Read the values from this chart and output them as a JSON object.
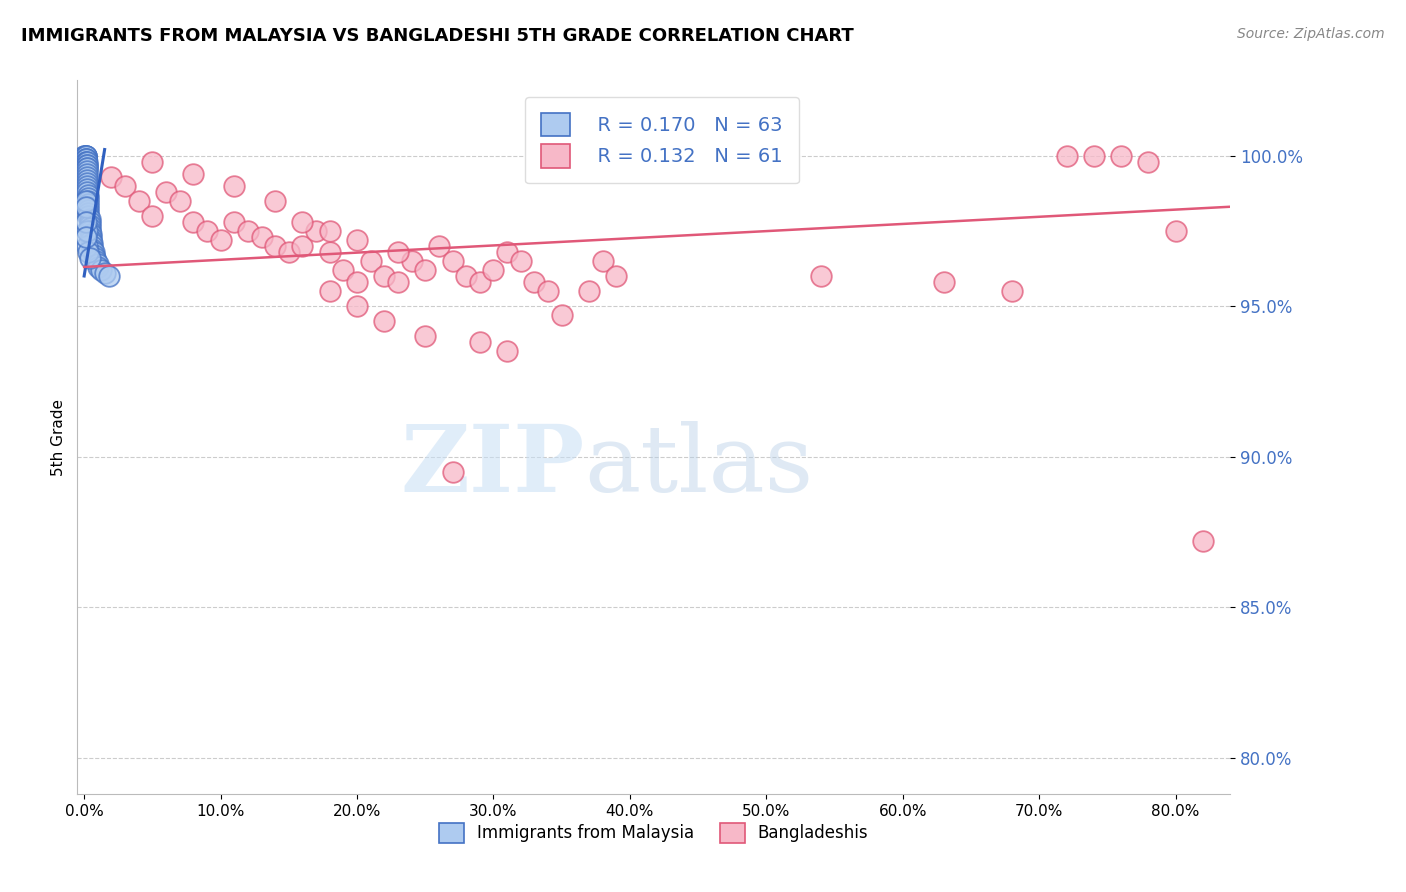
{
  "title": "IMMIGRANTS FROM MALAYSIA VS BANGLADESHI 5TH GRADE CORRELATION CHART",
  "source": "Source: ZipAtlas.com",
  "ylabel": "5th Grade",
  "ytick_labels": [
    "100.0%",
    "95.0%",
    "90.0%",
    "85.0%",
    "80.0%"
  ],
  "ytick_values": [
    1.0,
    0.95,
    0.9,
    0.85,
    0.8
  ],
  "xtick_labels": [
    "0.0%",
    "10.0%",
    "20.0%",
    "30.0%",
    "40.0%",
    "50.0%",
    "60.0%",
    "70.0%",
    "80.0%"
  ],
  "xtick_values": [
    0.0,
    0.1,
    0.2,
    0.3,
    0.4,
    0.5,
    0.6,
    0.7,
    0.8
  ],
  "xlim": [
    -0.005,
    0.84
  ],
  "ylim": [
    0.788,
    1.025
  ],
  "blue_face_color": "#AECBF0",
  "blue_edge_color": "#4472C4",
  "pink_face_color": "#F7B8C8",
  "pink_edge_color": "#E05878",
  "blue_line_color": "#3060C0",
  "pink_line_color": "#E05878",
  "legend_blue_r": "R = 0.170",
  "legend_blue_n": "N = 63",
  "legend_pink_r": "R = 0.132",
  "legend_pink_n": "N = 61",
  "watermark_zip": "ZIP",
  "watermark_atlas": "atlas",
  "blue_scatter_x": [
    0.0,
    0.0,
    0.001,
    0.001,
    0.001,
    0.001,
    0.001,
    0.001,
    0.001,
    0.001,
    0.001,
    0.001,
    0.001,
    0.001,
    0.002,
    0.002,
    0.002,
    0.002,
    0.002,
    0.002,
    0.002,
    0.002,
    0.002,
    0.002,
    0.002,
    0.002,
    0.002,
    0.003,
    0.003,
    0.003,
    0.003,
    0.003,
    0.003,
    0.003,
    0.003,
    0.004,
    0.004,
    0.004,
    0.004,
    0.004,
    0.005,
    0.005,
    0.005,
    0.006,
    0.006,
    0.006,
    0.007,
    0.007,
    0.008,
    0.009,
    0.01,
    0.01,
    0.012,
    0.015,
    0.018,
    0.002,
    0.002,
    0.003,
    0.004,
    0.001,
    0.001,
    0.001,
    0.001
  ],
  "blue_scatter_y": [
    1.0,
    1.0,
    1.0,
    1.0,
    1.0,
    1.0,
    0.999,
    0.999,
    0.999,
    0.998,
    0.998,
    0.997,
    0.997,
    0.997,
    0.998,
    0.997,
    0.997,
    0.996,
    0.996,
    0.995,
    0.994,
    0.993,
    0.992,
    0.991,
    0.99,
    0.989,
    0.988,
    0.987,
    0.986,
    0.985,
    0.984,
    0.983,
    0.982,
    0.981,
    0.98,
    0.979,
    0.978,
    0.977,
    0.976,
    0.975,
    0.974,
    0.973,
    0.972,
    0.971,
    0.97,
    0.969,
    0.968,
    0.967,
    0.966,
    0.965,
    0.964,
    0.963,
    0.962,
    0.961,
    0.96,
    0.97,
    0.975,
    0.968,
    0.966,
    0.985,
    0.983,
    0.978,
    0.973
  ],
  "pink_scatter_x": [
    0.02,
    0.03,
    0.04,
    0.05,
    0.06,
    0.07,
    0.08,
    0.09,
    0.1,
    0.11,
    0.12,
    0.13,
    0.14,
    0.15,
    0.16,
    0.17,
    0.18,
    0.19,
    0.2,
    0.21,
    0.22,
    0.23,
    0.24,
    0.25,
    0.26,
    0.27,
    0.28,
    0.29,
    0.3,
    0.31,
    0.32,
    0.33,
    0.34,
    0.35,
    0.37,
    0.38,
    0.39,
    0.05,
    0.08,
    0.11,
    0.14,
    0.16,
    0.18,
    0.2,
    0.23,
    0.54,
    0.63,
    0.68,
    0.72,
    0.74,
    0.76,
    0.78,
    0.8,
    0.82,
    0.18,
    0.2,
    0.22,
    0.25,
    0.27,
    0.29,
    0.31
  ],
  "pink_scatter_y": [
    0.993,
    0.99,
    0.985,
    0.98,
    0.988,
    0.985,
    0.978,
    0.975,
    0.972,
    0.978,
    0.975,
    0.973,
    0.97,
    0.968,
    0.97,
    0.975,
    0.968,
    0.962,
    0.958,
    0.965,
    0.96,
    0.958,
    0.965,
    0.962,
    0.97,
    0.965,
    0.96,
    0.958,
    0.962,
    0.968,
    0.965,
    0.958,
    0.955,
    0.947,
    0.955,
    0.965,
    0.96,
    0.998,
    0.994,
    0.99,
    0.985,
    0.978,
    0.975,
    0.972,
    0.968,
    0.96,
    0.958,
    0.955,
    1.0,
    1.0,
    1.0,
    0.998,
    0.975,
    0.872,
    0.955,
    0.95,
    0.945,
    0.94,
    0.895,
    0.938,
    0.935
  ],
  "pink_line_x0": 0.0,
  "pink_line_x1": 0.84,
  "pink_line_y0": 0.963,
  "pink_line_y1": 0.983,
  "blue_line_x0": 0.0,
  "blue_line_x1": 0.015,
  "blue_line_y0": 0.96,
  "blue_line_y1": 1.002
}
